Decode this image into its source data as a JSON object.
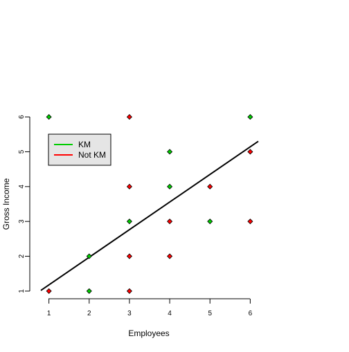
{
  "chart_data": {
    "type": "scatter",
    "xlabel": "Employees",
    "ylabel": "Gross Income",
    "xlim": [
      0.8,
      6.2
    ],
    "ylim": [
      0.8,
      6.2
    ],
    "x_ticks": [
      "1",
      "2",
      "3",
      "4",
      "5",
      "6"
    ],
    "y_ticks": [
      "1",
      "2",
      "3",
      "4",
      "5",
      "6"
    ],
    "legend_position": "top-left",
    "series": [
      {
        "name": "KM",
        "color": "#00cc00",
        "points": [
          [
            1,
            6
          ],
          [
            2,
            2
          ],
          [
            2,
            1
          ],
          [
            3,
            3
          ],
          [
            4,
            5
          ],
          [
            4,
            4
          ],
          [
            5,
            3
          ],
          [
            6,
            6
          ]
        ]
      },
      {
        "name": "Not KM",
        "color": "#ff0000",
        "points": [
          [
            1,
            1
          ],
          [
            3,
            6
          ],
          [
            3,
            4
          ],
          [
            3,
            2
          ],
          [
            3,
            1
          ],
          [
            4,
            3
          ],
          [
            4,
            2
          ],
          [
            5,
            4
          ],
          [
            6,
            5
          ],
          [
            6,
            3
          ]
        ]
      }
    ],
    "regression_line": {
      "color": "#000000",
      "from": [
        0.8,
        1.02
      ],
      "to": [
        6.2,
        5.3
      ]
    }
  }
}
